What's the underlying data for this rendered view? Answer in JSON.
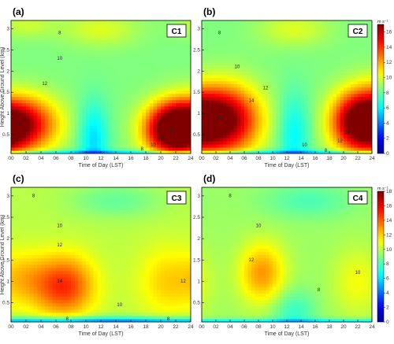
{
  "chart_data": [
    {
      "type": "heatmap",
      "panel_label": "(a)",
      "case_label": "C1",
      "xlabel": "Time of Day (LST)",
      "ylabel": "Height Above Ground Level (km)",
      "xticks": [
        "00",
        "02",
        "04",
        "06",
        "08",
        "10",
        "12",
        "14",
        "16",
        "18",
        "20",
        "22",
        "24"
      ],
      "yticks": [
        "0.5",
        "1",
        "1.5",
        "2",
        "2.5",
        "3"
      ],
      "xlim": [
        0,
        24
      ],
      "ylim": [
        0.05,
        3.2
      ],
      "colorbar": {
        "unit": "m s⁻¹",
        "ticks": [
          "0",
          "2",
          "4",
          "6",
          "8",
          "10",
          "12",
          "14",
          "16"
        ],
        "range": [
          0,
          17
        ]
      },
      "background": 8.5,
      "cores": [
        {
          "x": 1.0,
          "y": 0.75,
          "amp": 8.0,
          "sx": 5.0,
          "sy": 0.65
        },
        {
          "x": 21.5,
          "y": 0.6,
          "amp": 8.0,
          "sx": 3.6,
          "sy": 0.6
        },
        {
          "x": 11.0,
          "y": 0.4,
          "amp": -3.0,
          "sx": 2.0,
          "sy": 0.9
        },
        {
          "x": 12.0,
          "y": 3.0,
          "amp": 1.5,
          "sx": 5.0,
          "sy": 0.4
        },
        {
          "x": 2.0,
          "y": 3.1,
          "amp": 1.2,
          "sx": 4.0,
          "sy": 0.3
        }
      ],
      "contour_labels": [
        {
          "text": "8",
          "x": 6.5,
          "y": 2.9
        },
        {
          "text": "10",
          "x": 6.5,
          "y": 2.3
        },
        {
          "text": "12",
          "x": 4.5,
          "y": 1.7
        },
        {
          "text": "14",
          "x": 1.0,
          "y": 0.75
        },
        {
          "text": "14",
          "x": 21.5,
          "y": 0.6
        },
        {
          "text": "12",
          "x": 20.0,
          "y": 0.4
        },
        {
          "text": "10",
          "x": 19.0,
          "y": 0.25
        },
        {
          "text": "8",
          "x": 17.5,
          "y": 0.15
        }
      ]
    },
    {
      "type": "heatmap",
      "panel_label": "(b)",
      "case_label": "C2",
      "xlabel": "Time of Day (LST)",
      "ylabel": "",
      "xticks": [
        "00",
        "02",
        "04",
        "06",
        "08",
        "10",
        "12",
        "14",
        "16",
        "18",
        "20",
        "22",
        "24"
      ],
      "yticks": [
        "0.5",
        "1",
        "1.5",
        "2",
        "2.5",
        "3"
      ],
      "xlim": [
        0,
        24
      ],
      "ylim": [
        0.05,
        3.2
      ],
      "colorbar": {
        "unit": "m s⁻¹",
        "ticks": [
          "0",
          "2",
          "4",
          "6",
          "8",
          "10",
          "12",
          "14",
          "16"
        ],
        "range": [
          0,
          17
        ]
      },
      "background": 8.5,
      "cores": [
        {
          "x": 3.0,
          "y": 0.85,
          "amp": 9.0,
          "sx": 5.0,
          "sy": 0.8
        },
        {
          "x": 22.0,
          "y": 0.8,
          "amp": 8.0,
          "sx": 3.8,
          "sy": 0.7
        },
        {
          "x": 13.0,
          "y": 0.5,
          "amp": -2.5,
          "sx": 2.2,
          "sy": 1.0
        },
        {
          "x": 13.0,
          "y": 3.0,
          "amp": 1.5,
          "sx": 5.0,
          "sy": 0.4
        }
      ],
      "contour_labels": [
        {
          "text": "8",
          "x": 2.5,
          "y": 2.9
        },
        {
          "text": "10",
          "x": 5.0,
          "y": 2.1
        },
        {
          "text": "12",
          "x": 9.0,
          "y": 1.6
        },
        {
          "text": "14",
          "x": 7.0,
          "y": 1.3
        },
        {
          "text": "16",
          "x": 2.5,
          "y": 0.9
        },
        {
          "text": "14",
          "x": 20.5,
          "y": 0.55
        },
        {
          "text": "12",
          "x": 19.5,
          "y": 0.35
        },
        {
          "text": "10",
          "x": 14.5,
          "y": 0.25
        },
        {
          "text": "8",
          "x": 17.5,
          "y": 0.12
        }
      ]
    },
    {
      "type": "heatmap",
      "panel_label": "(c)",
      "case_label": "C3",
      "xlabel": "Time of Day (LST)",
      "ylabel": "Height Above Ground Level (km)",
      "xticks": [
        "00",
        "02",
        "04",
        "06",
        "08",
        "10",
        "12",
        "14",
        "16",
        "18",
        "20",
        "22",
        "24"
      ],
      "yticks": [
        "0.5",
        "1",
        "1.5",
        "2",
        "2.5",
        "3"
      ],
      "xlim": [
        0,
        24
      ],
      "ylim": [
        0.05,
        3.2
      ],
      "colorbar": {
        "unit": "m s⁻¹",
        "ticks": [
          "0",
          "2",
          "4",
          "6",
          "8",
          "10",
          "12",
          "14",
          "16",
          "18"
        ],
        "range": [
          0,
          18
        ]
      },
      "background": 10.0,
      "cores": [
        {
          "x": 7.0,
          "y": 0.9,
          "amp": 5.0,
          "sx": 4.0,
          "sy": 0.7
        },
        {
          "x": 2.0,
          "y": 1.1,
          "amp": 1.5,
          "sx": 3.0,
          "sy": 0.6
        },
        {
          "x": 21.0,
          "y": 1.0,
          "amp": 2.0,
          "sx": 4.0,
          "sy": 0.8
        },
        {
          "x": 14.0,
          "y": 2.9,
          "amp": -1.5,
          "sx": 6.0,
          "sy": 0.4
        },
        {
          "x": 12.0,
          "y": 0.1,
          "amp": -2.5,
          "sx": 12.0,
          "sy": 0.12
        }
      ],
      "contour_labels": [
        {
          "text": "8",
          "x": 3.0,
          "y": 3.0
        },
        {
          "text": "10",
          "x": 6.5,
          "y": 2.3
        },
        {
          "text": "12",
          "x": 6.5,
          "y": 1.85
        },
        {
          "text": "14",
          "x": 6.5,
          "y": 1.0
        },
        {
          "text": "10",
          "x": 14.5,
          "y": 0.45
        },
        {
          "text": "12",
          "x": 23.0,
          "y": 1.0
        },
        {
          "text": "8",
          "x": 7.5,
          "y": 0.12
        },
        {
          "text": "8",
          "x": 21.0,
          "y": 0.12
        }
      ]
    },
    {
      "type": "heatmap",
      "panel_label": "(d)",
      "case_label": "C4",
      "xlabel": "Time of Day (LST)",
      "ylabel": "",
      "xticks": [
        "00",
        "02",
        "04",
        "06",
        "08",
        "10",
        "12",
        "14",
        "16",
        "18",
        "20",
        "22",
        "24"
      ],
      "yticks": [
        "0.5",
        "1",
        "1.5",
        "2",
        "2.5",
        "3"
      ],
      "xlim": [
        0,
        24
      ],
      "ylim": [
        0.05,
        3.2
      ],
      "colorbar": {
        "unit": "m s⁻¹",
        "ticks": [
          "0",
          "2",
          "4",
          "6",
          "8",
          "10",
          "12",
          "14",
          "16",
          "18"
        ],
        "range": [
          0,
          18
        ]
      },
      "background": 9.5,
      "cores": [
        {
          "x": 8.5,
          "y": 1.2,
          "amp": 3.5,
          "sx": 3.2,
          "sy": 0.7
        },
        {
          "x": 22.0,
          "y": 1.0,
          "amp": 1.5,
          "sx": 3.5,
          "sy": 0.8
        },
        {
          "x": 15.0,
          "y": 2.9,
          "amp": -1.5,
          "sx": 6.0,
          "sy": 0.4
        },
        {
          "x": 13.0,
          "y": 0.3,
          "amp": -2.0,
          "sx": 3.0,
          "sy": 0.5
        }
      ],
      "contour_labels": [
        {
          "text": "8",
          "x": 4.0,
          "y": 3.0
        },
        {
          "text": "10",
          "x": 8.0,
          "y": 2.3
        },
        {
          "text": "12",
          "x": 7.0,
          "y": 1.5
        },
        {
          "text": "8",
          "x": 16.5,
          "y": 0.8
        },
        {
          "text": "10",
          "x": 22.0,
          "y": 1.2
        }
      ]
    }
  ]
}
